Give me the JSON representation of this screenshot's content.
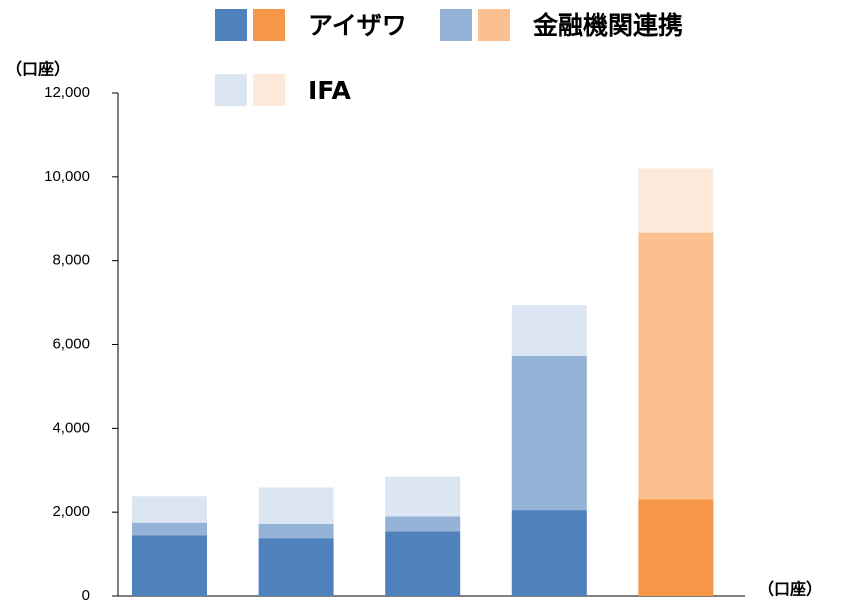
{
  "chart_data": {
    "type": "stacked_bar",
    "categories": [
      null,
      null,
      null,
      null,
      null
    ],
    "ylabel": "（口座）",
    "xlabel": "（口座）",
    "ylim": [
      0,
      12000
    ],
    "yticks": [
      0,
      {
        "value": 2000,
        "label": "2,000"
      },
      {
        "value": 4000,
        "label": "4,000"
      },
      {
        "value": 6000,
        "label": "6,000"
      },
      {
        "value": 8000,
        "label": "8,000"
      },
      {
        "value": 10000,
        "label": "10,000"
      },
      {
        "value": 12000,
        "label": "12,000"
      }
    ],
    "series": [
      {
        "name": "アイザワ",
        "colors": [
          "#4f81bd",
          "#4f81bd",
          "#4f81bd",
          "#4f81bd",
          "#f79646"
        ],
        "values": [
          1450,
          1380,
          1540,
          2050,
          2310
        ]
      },
      {
        "name": "金融機関連携",
        "colors": [
          "#95b3d7",
          "#95b3d7",
          "#95b3d7",
          "#95b3d7",
          "#fac08f"
        ],
        "values": [
          300,
          340,
          360,
          3680,
          6360
        ]
      },
      {
        "name": "IFA",
        "colors": [
          "#dce6f2",
          "#dce6f2",
          "#dce6f2",
          "#dce6f2",
          "#fde9d9"
        ],
        "values": [
          630,
          870,
          950,
          1210,
          1530
        ]
      }
    ]
  }
}
